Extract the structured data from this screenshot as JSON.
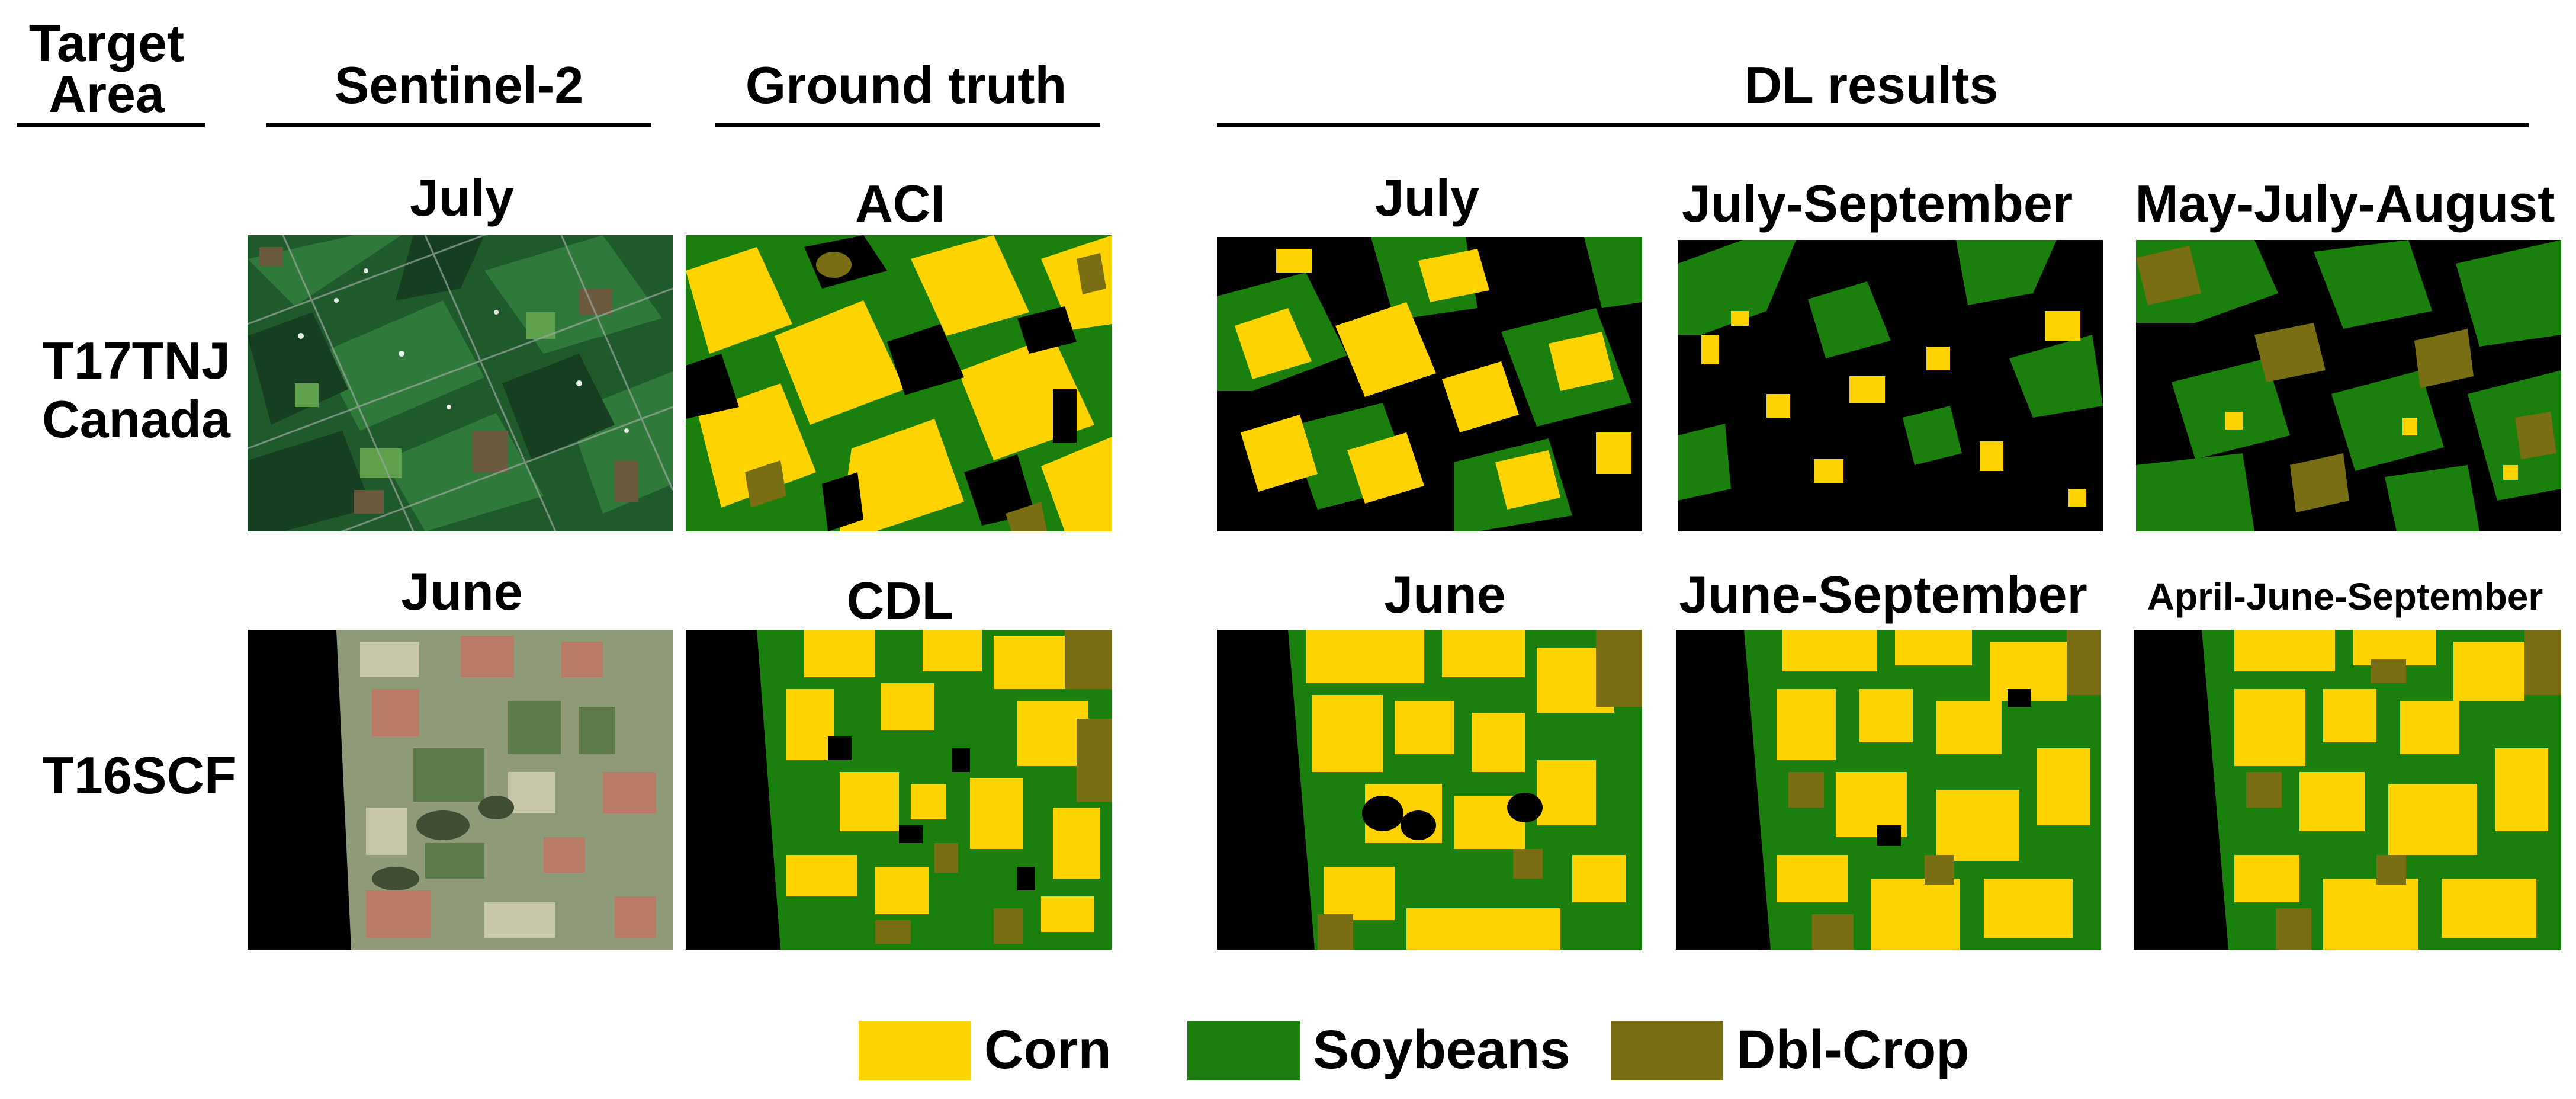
{
  "headers": {
    "target_area": "Target Area",
    "sentinel": "Sentinel-2",
    "ground_truth": "Ground truth",
    "dl_results": "DL results"
  },
  "rows": [
    {
      "label": "T17TNJ Canada",
      "sentinel_month": "July",
      "ground_truth_source": "ACI",
      "dl_periods": [
        "July",
        "July-September",
        "May-July-August"
      ]
    },
    {
      "label": "T16SCF",
      "sentinel_month": "June",
      "ground_truth_source": "CDL",
      "dl_periods": [
        "June",
        "June-September",
        "April-June-September"
      ]
    }
  ],
  "legend": [
    {
      "label": "Corn",
      "color": "#FFD300"
    },
    {
      "label": "Soybeans",
      "color": "#1A7F0C"
    },
    {
      "label": "Dbl-Crop",
      "color": "#7A6E14"
    }
  ],
  "colors": {
    "background_class": "#000000"
  }
}
